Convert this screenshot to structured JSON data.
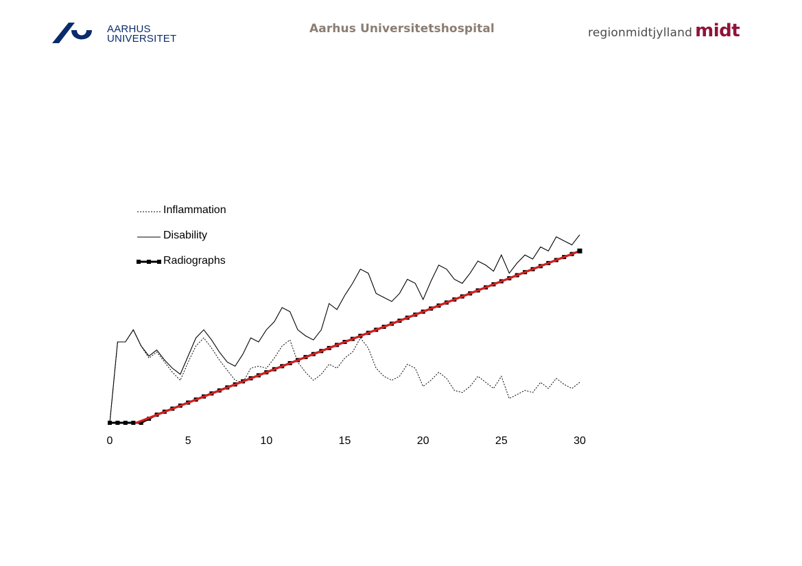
{
  "header": {
    "left_logo_line1": "AARHUS",
    "left_logo_line2": "UNIVERSITET",
    "center_title": "Aarhus Universitetshospital",
    "right_logo_region": "regionmidtjylland",
    "right_logo_midt": "midt"
  },
  "icons": {
    "au_logo": "aarhus-university-seal-icon"
  },
  "colors": {
    "au_blue": "#0a2b6b",
    "center_title": "#8a7d72",
    "midt_red": "#8e1538",
    "trend_red": "#d42020"
  },
  "chart_data": {
    "type": "line",
    "title": "",
    "xlabel": "",
    "ylabel": "",
    "xlim": [
      0,
      30
    ],
    "ylim": [
      0,
      100
    ],
    "x_ticks": [
      0,
      5,
      10,
      15,
      20,
      25,
      30
    ],
    "grid": false,
    "legend_position": "top-left",
    "series": [
      {
        "name": "Inflammation",
        "style": "dotted",
        "x": [
          0,
          0.5,
          1,
          1.5,
          2,
          2.5,
          3,
          3.5,
          4,
          4.5,
          5,
          5.5,
          6,
          6.5,
          7,
          7.5,
          8,
          8.5,
          9,
          9.5,
          10,
          10.5,
          11,
          11.5,
          12,
          12.5,
          13,
          13.5,
          14,
          14.5,
          15,
          15.5,
          16,
          16.5,
          17,
          17.5,
          18,
          18.5,
          19,
          19.5,
          20,
          20.5,
          21,
          21.5,
          22,
          22.5,
          23,
          23.5,
          24,
          24.5,
          25,
          25.5,
          26,
          26.5,
          27,
          27.5,
          28,
          28.5,
          29,
          29.5,
          30
        ],
        "values": [
          0,
          40,
          40,
          46,
          38,
          32,
          35,
          30,
          25,
          21,
          30,
          38,
          42,
          37,
          31,
          26,
          21,
          20,
          27,
          28,
          27,
          32,
          38,
          41,
          30,
          25,
          21,
          24,
          29,
          27,
          32,
          35,
          42,
          37,
          27,
          23,
          21,
          23,
          29,
          27,
          18,
          21,
          25,
          22,
          16,
          15,
          18,
          23,
          20,
          17,
          23,
          12,
          14,
          16,
          15,
          20,
          17,
          22,
          19,
          17,
          20
        ]
      },
      {
        "name": "Disability",
        "style": "solid",
        "x": [
          0,
          0.5,
          1,
          1.5,
          2,
          2.5,
          3,
          3.5,
          4,
          4.5,
          5,
          5.5,
          6,
          6.5,
          7,
          7.5,
          8,
          8.5,
          9,
          9.5,
          10,
          10.5,
          11,
          11.5,
          12,
          12.5,
          13,
          13.5,
          14,
          14.5,
          15,
          15.5,
          16,
          16.5,
          17,
          17.5,
          18,
          18.5,
          19,
          19.5,
          20,
          20.5,
          21,
          21.5,
          22,
          22.5,
          23,
          23.5,
          24,
          24.5,
          25,
          25.5,
          26,
          26.5,
          27,
          27.5,
          28,
          28.5,
          29,
          29.5,
          30
        ],
        "values": [
          0,
          40,
          40,
          46,
          38,
          33,
          36,
          31,
          27,
          24,
          33,
          42,
          46,
          41,
          35,
          30,
          28,
          34,
          42,
          40,
          46,
          50,
          57,
          55,
          46,
          43,
          41,
          46,
          59,
          56,
          63,
          69,
          76,
          74,
          64,
          62,
          60,
          64,
          71,
          69,
          61,
          70,
          78,
          76,
          71,
          69,
          74,
          80,
          78,
          75,
          83,
          74,
          79,
          83,
          81,
          87,
          85,
          92,
          90,
          88,
          93
        ]
      },
      {
        "name": "Radiographs",
        "style": "line-with-square-markers",
        "x": [
          0,
          0.5,
          1,
          1.5,
          2,
          2.5,
          3,
          3.5,
          4,
          4.5,
          5,
          5.5,
          6,
          6.5,
          7,
          7.5,
          8,
          8.5,
          9,
          9.5,
          10,
          10.5,
          11,
          11.5,
          12,
          12.5,
          13,
          13.5,
          14,
          14.5,
          15,
          15.5,
          16,
          16.5,
          17,
          17.5,
          18,
          18.5,
          19,
          19.5,
          20,
          20.5,
          21,
          21.5,
          22,
          22.5,
          23,
          23.5,
          24,
          24.5,
          25,
          25.5,
          26,
          26.5,
          27,
          27.5,
          28,
          28.5,
          29,
          29.5,
          30
        ],
        "values": [
          0,
          0,
          0,
          0,
          0,
          2,
          4,
          5.5,
          7,
          8.5,
          10,
          11.5,
          13,
          14.5,
          16,
          17.5,
          19,
          20.5,
          22,
          23.5,
          25,
          26.5,
          28,
          29.5,
          31,
          32.5,
          34,
          35.5,
          37,
          38.5,
          40,
          41.5,
          43,
          44.5,
          46,
          47.5,
          49,
          50.5,
          52,
          53.5,
          55,
          56.5,
          58,
          59.5,
          61,
          62.5,
          64,
          65.5,
          67,
          68.5,
          70,
          71.5,
          73,
          74.5,
          76,
          77.5,
          79,
          80.5,
          82,
          83.5,
          85
        ]
      }
    ],
    "trend_line": {
      "color": "#d42020",
      "x": [
        1.7,
        30
      ],
      "values": [
        0,
        85
      ]
    }
  }
}
